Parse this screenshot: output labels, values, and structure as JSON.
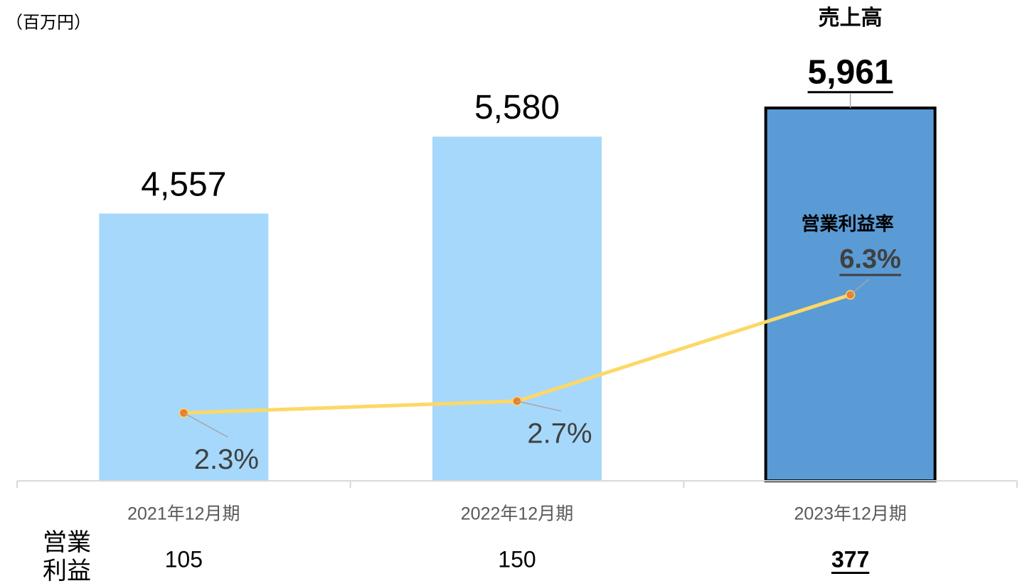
{
  "chart_data": {
    "type": "bar-line",
    "unit_label": "（百万円）",
    "categories": [
      "2021年12月期",
      "2022年12月期",
      "2023年12月期"
    ],
    "series": [
      {
        "name": "売上高",
        "type": "bar",
        "colors": [
          "#a6d8fb",
          "#a6d8fb",
          "#5b9bd5"
        ],
        "values": [
          4557,
          5580,
          5961
        ],
        "value_labels": [
          "4,557",
          "5,580",
          "5,961"
        ]
      },
      {
        "name": "営業利益率",
        "type": "line",
        "axis": "y2",
        "color": "#fdd866",
        "marker_color": "#ed7d31",
        "values": [
          2.3,
          2.7,
          6.3
        ],
        "value_labels": [
          "2.3%",
          "2.7%",
          "6.3%"
        ]
      }
    ],
    "operating_profit": {
      "name": "営業利益",
      "values": [
        105,
        150,
        377
      ]
    },
    "ylim": [
      1000,
      6500
    ],
    "y2lim": [
      0,
      14
    ]
  }
}
